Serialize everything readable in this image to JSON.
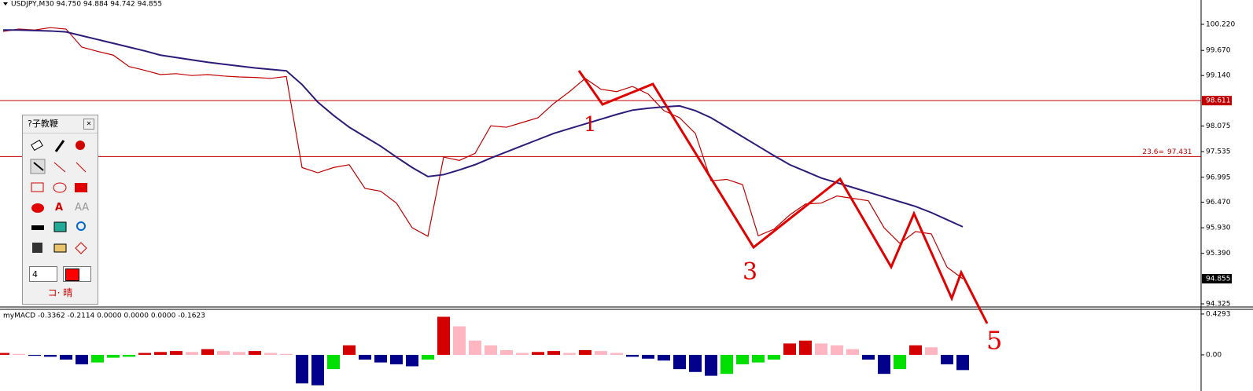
{
  "header": "USDJPY,M30  94.750 94.884 94.742 94.855",
  "annotations": [
    "1",
    "3",
    "5"
  ],
  "toolbox": {
    "title": "?子教鞭",
    "letters": [
      "A",
      "AA"
    ],
    "width": "4",
    "footer": "コ· 晴"
  },
  "chart_data": [
    {
      "type": "line",
      "ylim": [
        94.259,
        100.733
      ],
      "yticks": [
        {
          "value": 100.22,
          "label": "100.220"
        },
        {
          "value": 99.67,
          "label": "99.670"
        },
        {
          "value": 99.14,
          "label": "99.140"
        },
        {
          "value": 98.075,
          "label": "98.075"
        },
        {
          "value": 97.535,
          "label": "97.535"
        },
        {
          "value": 96.995,
          "label": "96.995"
        },
        {
          "value": 96.47,
          "label": "96.470"
        },
        {
          "value": 95.93,
          "label": "95.930"
        },
        {
          "value": 95.39,
          "label": "95.390"
        },
        {
          "value": 94.325,
          "label": "94.325"
        }
      ],
      "series": [
        {
          "color": "#c00000",
          "values": [
            100.07,
            100.12,
            100.1,
            100.15,
            100.12,
            99.74,
            99.65,
            99.57,
            99.33,
            99.25,
            99.16,
            99.18,
            99.14,
            99.16,
            99.13,
            99.11,
            99.1,
            99.08,
            99.12,
            97.2,
            97.09,
            97.2,
            97.26,
            96.76,
            96.7,
            96.45,
            95.93,
            95.75,
            97.42,
            97.35,
            97.5,
            98.08,
            98.05,
            98.15,
            98.25,
            98.55,
            98.8,
            99.08,
            98.85,
            98.8,
            98.91,
            98.75,
            98.4,
            98.25,
            97.92,
            96.92,
            96.95,
            96.84,
            95.76,
            95.9,
            96.2,
            96.43,
            96.45,
            96.6,
            96.55,
            96.5,
            95.93,
            95.6,
            95.85,
            95.8,
            95.1,
            94.855
          ]
        },
        {
          "color": "#2e1a78",
          "values": [
            100.1,
            100.1,
            100.09,
            100.08,
            100.06,
            99.98,
            99.9,
            99.82,
            99.74,
            99.66,
            99.57,
            99.52,
            99.47,
            99.42,
            99.38,
            99.34,
            99.3,
            99.27,
            99.24,
            98.95,
            98.58,
            98.3,
            98.05,
            97.85,
            97.65,
            97.42,
            97.2,
            97.01,
            97.05,
            97.15,
            97.26,
            97.4,
            97.53,
            97.66,
            97.79,
            97.92,
            98.02,
            98.12,
            98.22,
            98.32,
            98.41,
            98.45,
            98.48,
            98.5,
            98.4,
            98.25,
            98.05,
            97.85,
            97.65,
            97.45,
            97.26,
            97.12,
            96.98,
            96.88,
            96.78,
            96.68,
            96.58,
            96.48,
            96.38,
            96.25,
            96.1,
            95.95
          ]
        }
      ],
      "hlines": [
        98.611,
        97.431
      ],
      "hline_color": "#c00000",
      "fib_label": "23.6="
    },
    {
      "type": "bar",
      "title": "myMACD -0.3362 -0.2114 0.0000 0.0000 0.0000 -0.1623",
      "ylim": [
        -0.38,
        0.47
      ],
      "yticks": [
        0.4293,
        {
          "value": 0,
          "label": "0.00"
        }
      ],
      "colors": [
        "#d40000",
        "#ffb6c1",
        "#00008b",
        "#00e000"
      ],
      "values": [
        0.02,
        0.01,
        -0.01,
        -0.02,
        -0.05,
        -0.1,
        -0.08,
        -0.03,
        -0.02,
        0.02,
        0.03,
        0.04,
        0.03,
        0.06,
        0.04,
        0.03,
        0.04,
        0.02,
        0.01,
        -0.3,
        -0.32,
        -0.15,
        0.1,
        -0.05,
        -0.08,
        -0.1,
        -0.12,
        -0.05,
        0.4,
        0.3,
        0.15,
        0.1,
        0.05,
        0.02,
        0.03,
        0.04,
        0.02,
        0.05,
        0.04,
        0.02,
        -0.02,
        -0.04,
        -0.06,
        -0.15,
        -0.18,
        -0.22,
        -0.2,
        -0.1,
        -0.08,
        -0.05,
        0.12,
        0.15,
        0.12,
        0.1,
        0.06,
        -0.05,
        -0.2,
        -0.15,
        0.1,
        0.08,
        -0.1,
        -0.16
      ]
    }
  ]
}
